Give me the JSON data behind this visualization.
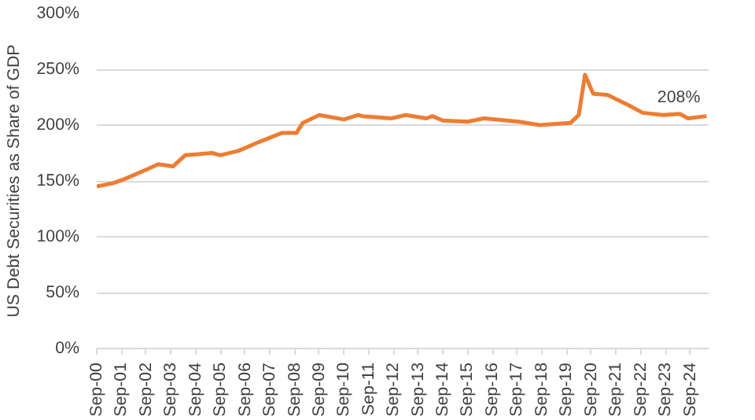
{
  "chart_data": {
    "type": "line",
    "ylabel": "US Debt Securities as Share of GDP",
    "x": [
      "2000-09",
      "2001-05",
      "2001-11",
      "2002-09",
      "2003-03",
      "2003-10",
      "2004-04",
      "2005-05",
      "2005-09",
      "2006-06",
      "2007-04",
      "2008-03",
      "2008-10",
      "2009-01",
      "2009-09",
      "2010-09",
      "2011-04",
      "2011-06",
      "2012-08",
      "2013-03",
      "2014-01",
      "2014-04",
      "2014-09",
      "2015-09",
      "2016-05",
      "2017-10",
      "2018-08",
      "2019-11",
      "2020-03",
      "2020-06",
      "2020-10",
      "2021-05",
      "2022-03",
      "2022-10",
      "2023-08",
      "2024-04",
      "2024-08",
      "2025-05"
    ],
    "series": [
      {
        "color": "#ed7d31",
        "values": [
          145,
          148,
          152,
          160,
          165,
          163,
          173,
          175,
          173,
          177,
          185,
          193,
          193,
          202,
          209,
          205,
          209,
          208,
          206,
          209,
          206,
          208,
          204,
          203,
          206,
          203,
          200,
          202,
          209,
          245,
          228,
          227,
          218,
          211,
          209,
          210,
          206,
          208
        ]
      }
    ],
    "ylim": [
      0,
      300
    ],
    "yticks": [
      {
        "value": 0,
        "label": "0%"
      },
      {
        "value": 50,
        "label": "50%"
      },
      {
        "value": 100,
        "label": "100%"
      },
      {
        "value": 150,
        "label": "150%"
      },
      {
        "value": 200,
        "label": "200%"
      },
      {
        "value": 250,
        "label": "250%"
      },
      {
        "value": 300,
        "label": "300%"
      }
    ],
    "xlim": [
      "2000-09",
      "2025-06"
    ],
    "xticks": [
      {
        "value": "2000-09",
        "label": "Sep-00"
      },
      {
        "value": "2001-09",
        "label": "Sep-01"
      },
      {
        "value": "2002-09",
        "label": "Sep-02"
      },
      {
        "value": "2003-09",
        "label": "Sep-03"
      },
      {
        "value": "2004-09",
        "label": "Sep-04"
      },
      {
        "value": "2005-09",
        "label": "Sep-05"
      },
      {
        "value": "2006-09",
        "label": "Sep-06"
      },
      {
        "value": "2007-09",
        "label": "Sep-07"
      },
      {
        "value": "2008-09",
        "label": "Sep-08"
      },
      {
        "value": "2009-09",
        "label": "Sep-09"
      },
      {
        "value": "2010-09",
        "label": "Sep-10"
      },
      {
        "value": "2011-09",
        "label": "Sep-11"
      },
      {
        "value": "2012-09",
        "label": "Sep-12"
      },
      {
        "value": "2013-09",
        "label": "Sep-13"
      },
      {
        "value": "2014-09",
        "label": "Sep-14"
      },
      {
        "value": "2015-09",
        "label": "Sep-15"
      },
      {
        "value": "2016-09",
        "label": "Sep-16"
      },
      {
        "value": "2017-09",
        "label": "Sep-17"
      },
      {
        "value": "2018-09",
        "label": "Sep-18"
      },
      {
        "value": "2019-09",
        "label": "Sep-19"
      },
      {
        "value": "2020-09",
        "label": "Sep-20"
      },
      {
        "value": "2021-09",
        "label": "Sep-21"
      },
      {
        "value": "2022-09",
        "label": "Sep-22"
      },
      {
        "value": "2023-09",
        "label": "Sep-23"
      },
      {
        "value": "2024-09",
        "label": "Sep-24"
      }
    ],
    "annotations": [
      {
        "text": "208%",
        "x": "2025-05",
        "y": 208
      }
    ],
    "grid": "y"
  }
}
